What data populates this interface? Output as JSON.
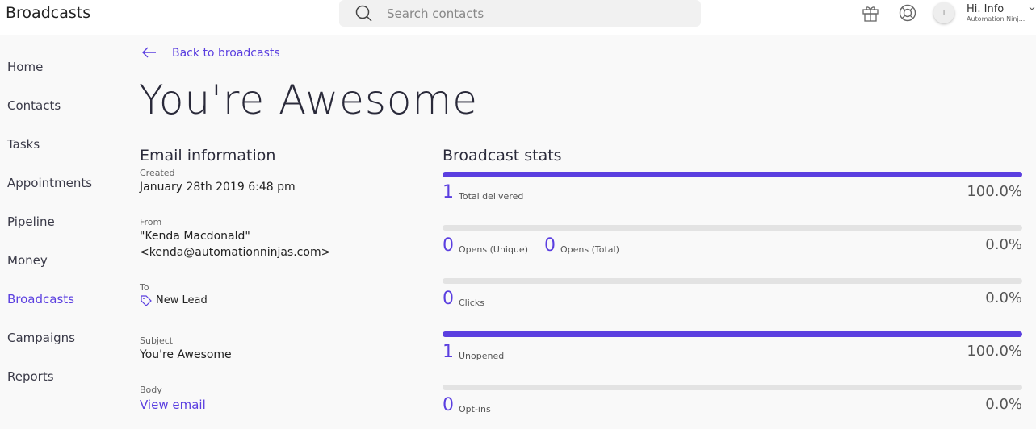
{
  "header": {
    "app_title": "Broadcasts",
    "search_placeholder": "Search contacts",
    "user_initial": "I",
    "user_greeting": "Hi. Info",
    "user_company": "Automation Ninj..."
  },
  "nav": {
    "items": [
      "Home",
      "Contacts",
      "Tasks",
      "Appointments",
      "Pipeline",
      "Money",
      "Broadcasts",
      "Campaigns",
      "Reports"
    ],
    "active": 6
  },
  "page": {
    "back_link": "Back to broadcasts",
    "title": "You're Awesome"
  },
  "email_info": {
    "heading": "Email information",
    "created": {
      "label": "Created",
      "value": "January 28th 2019 6:48 pm"
    },
    "from": {
      "label": "From",
      "lines": [
        "\"Kenda Macdonald\"",
        "<kenda@automationninjas.com>"
      ]
    },
    "to": {
      "label": "To",
      "value": "New Lead"
    },
    "subject": {
      "label": "Subject",
      "value": "You're Awesome"
    },
    "body": {
      "label": "Body",
      "value": "View email"
    }
  },
  "stats": {
    "heading": "Broadcast stats",
    "items": [
      {
        "counts": [
          {
            "count": 1,
            "label": "Total delivered"
          }
        ],
        "percent": 100,
        "percent_label": "100.0%"
      },
      {
        "counts": [
          {
            "count": 0,
            "label": "Opens (Unique)"
          },
          {
            "count": 0,
            "label": "Opens (Total)"
          }
        ],
        "percent": 0,
        "percent_label": "0.0%"
      },
      {
        "counts": [
          {
            "count": 0,
            "label": "Clicks"
          }
        ],
        "percent": 0,
        "percent_label": "0.0%"
      },
      {
        "counts": [
          {
            "count": 1,
            "label": "Unopened"
          }
        ],
        "percent": 100,
        "percent_label": "100.0%"
      },
      {
        "counts": [
          {
            "count": 0,
            "label": "Opt-ins"
          }
        ],
        "percent": 0,
        "percent_label": "0.0%"
      }
    ]
  }
}
